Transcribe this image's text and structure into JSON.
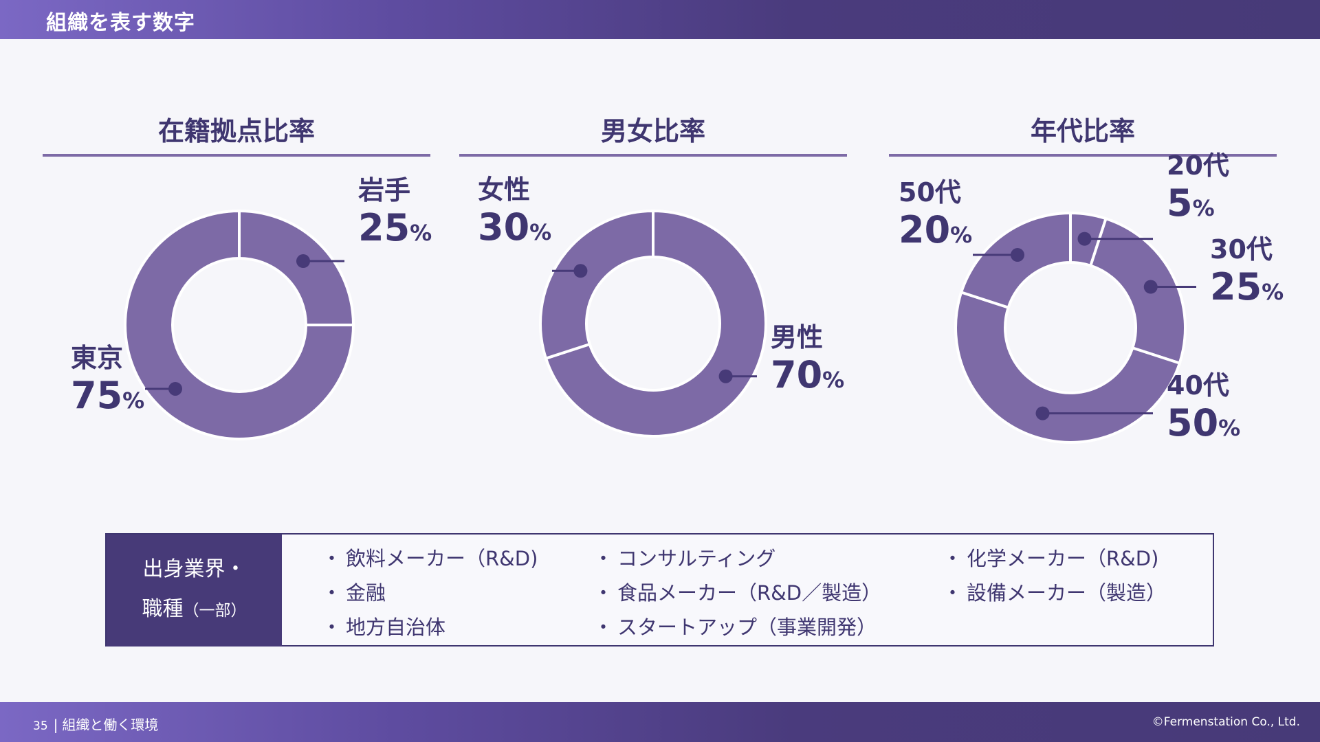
{
  "header": {
    "title": "組織を表す数字"
  },
  "footer": {
    "page_number": "35",
    "section": "組織と働く環境",
    "copyright": "©Fermenstation Co., Ltd."
  },
  "chart_data": [
    {
      "type": "pie",
      "title": "在籍拠点比率",
      "categories": [
        "岩手",
        "東京"
      ],
      "values": [
        25,
        75
      ]
    },
    {
      "type": "pie",
      "title": "男女比率",
      "categories": [
        "男性",
        "女性"
      ],
      "values": [
        70,
        30
      ]
    },
    {
      "type": "pie",
      "title": "年代比率",
      "categories": [
        "20代",
        "30代",
        "40代",
        "50代"
      ],
      "values": [
        5,
        25,
        50,
        20
      ]
    }
  ],
  "percent_sign": "%",
  "colors": {
    "slice": "#7d6aa6",
    "label": "#3f3670",
    "marker": "#473a78",
    "header": "#473a78"
  },
  "background_section": {
    "heading_line1": "出身業界・",
    "heading_line2": "職種",
    "heading_note": "（一部）",
    "items": [
      "飲料メーカー（R&D)",
      "金融",
      "地方自治体",
      "コンサルティング",
      "食品メーカー（R&D／製造）",
      "スタートアップ（事業開発）",
      "化学メーカー（R&D)",
      "設備メーカー（製造）"
    ],
    "bullet": "・"
  }
}
